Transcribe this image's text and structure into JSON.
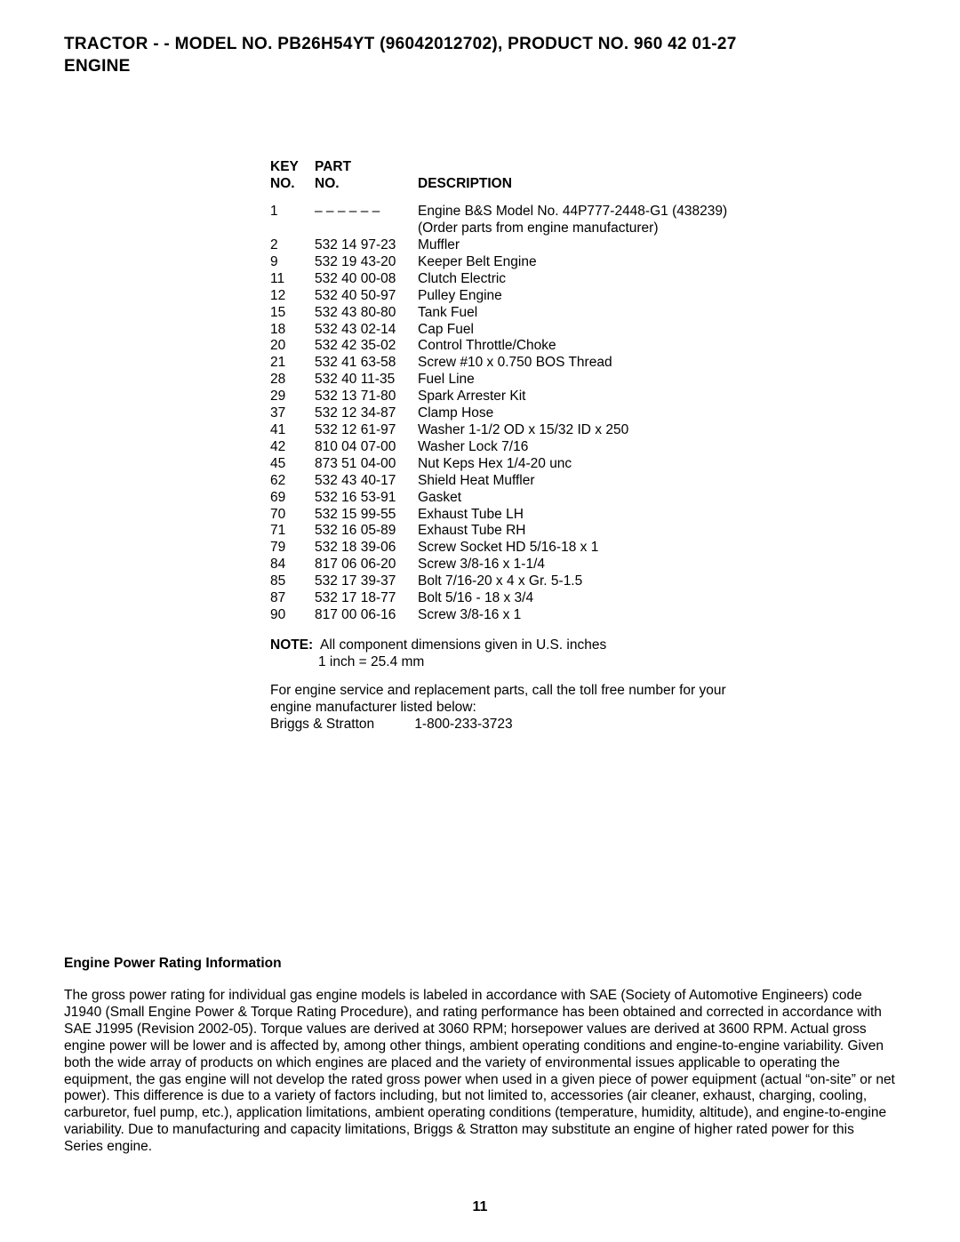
{
  "header_line1": "TRACTOR - - MODEL NO. PB26H54YT (96042012702), PRODUCT NO. 960 42 01-27",
  "header_line2": "ENGINE",
  "table": {
    "head_key1": "KEY",
    "head_key2": "NO.",
    "head_part1": "PART",
    "head_part2": "NO.",
    "head_desc": "DESCRIPTION",
    "rows": [
      {
        "k": "1",
        "p": "– – – – – –",
        "d": "Engine B&S Model No. 44P777-2448-G1 (438239)  (Order parts from engine manufacturer)"
      },
      {
        "k": "2",
        "p": "532 14 97-23",
        "d": "Muffler"
      },
      {
        "k": "9",
        "p": "532 19 43-20",
        "d": "Keeper Belt Engine"
      },
      {
        "k": "11",
        "p": "532 40 00-08",
        "d": "Clutch Electric"
      },
      {
        "k": "12",
        "p": "532 40 50-97",
        "d": "Pulley Engine"
      },
      {
        "k": "15",
        "p": "532 43 80-80",
        "d": "Tank Fuel"
      },
      {
        "k": "18",
        "p": "532 43 02-14",
        "d": "Cap Fuel"
      },
      {
        "k": "20",
        "p": "532 42 35-02",
        "d": "Control Throttle/Choke"
      },
      {
        "k": "21",
        "p": "532 41 63-58",
        "d": "Screw #10 x 0.750 BOS Thread"
      },
      {
        "k": "28",
        "p": "532 40 11-35",
        "d": "Fuel Line"
      },
      {
        "k": "29",
        "p": "532 13 71-80",
        "d": "Spark Arrester Kit"
      },
      {
        "k": "37",
        "p": "532 12 34-87",
        "d": "Clamp Hose"
      },
      {
        "k": "41",
        "p": "532 12 61-97",
        "d": "Washer 1-1/2 OD x 15/32 ID x 250"
      },
      {
        "k": "42",
        "p": "810 04 07-00",
        "d": "Washer Lock 7/16"
      },
      {
        "k": "45",
        "p": "873 51 04-00",
        "d": "Nut Keps Hex 1/4-20 unc"
      },
      {
        "k": "62",
        "p": "532 43 40-17",
        "d": "Shield Heat Muffler"
      },
      {
        "k": "69",
        "p": "532 16 53-91",
        "d": "Gasket"
      },
      {
        "k": "70",
        "p": "532 15 99-55",
        "d": "Exhaust Tube LH"
      },
      {
        "k": "71",
        "p": "532 16 05-89",
        "d": "Exhaust Tube RH"
      },
      {
        "k": "79",
        "p": "532 18 39-06",
        "d": "Screw Socket HD 5/16-18 x 1"
      },
      {
        "k": "84",
        "p": "817 06 06-20",
        "d": "Screw 3/8-16 x 1-1/4"
      },
      {
        "k": "85",
        "p": "532 17 39-37",
        "d": "Bolt 7/16-20 x 4 x Gr. 5-1.5"
      },
      {
        "k": "87",
        "p": "532 17 18-77",
        "d": "Bolt 5/16 - 18 x 3/4"
      },
      {
        "k": "90",
        "p": "817 00 06-16",
        "d": "Screw 3/8-16 x 1"
      }
    ]
  },
  "note_label": "NOTE:",
  "note_text1": "All component dimensions given in U.S. inches",
  "note_text2": "1 inch = 25.4 mm",
  "service_text": "For engine service and replacement parts, call the toll free number for your engine manufacturer listed below:",
  "service_mfr": "Briggs & Stratton",
  "service_phone": "1-800-233-3723",
  "power_heading": "Engine Power Rating Information",
  "power_body": "The gross power rating for individual gas engine models is labeled in accordance with SAE (Society of Automotive Engineers) code J1940 (Small Engine Power & Torque Rating Procedure), and rating performance has been obtained and corrected in accordance with SAE J1995 (Revision 2002-05). Torque values are derived at 3060 RPM; horsepower values are derived at 3600 RPM. Actual gross engine power will be lower and is affected by, among other things, ambient operating conditions and engine-to-engine variability. Given both the wide array of products on which engines are placed and the variety of environmental issues applicable to operating the equipment, the gas engine will not develop the rated gross power when used in a given piece of power equipment (actual “on-site” or net power). This difference is due to a variety of factors including, but not limited to, accessories (air cleaner, exhaust, charging, cooling, carburetor, fuel pump, etc.), application limitations, ambient operating conditions (temperature, humidity, altitude), and engine-to-engine variability. Due to manufacturing and capacity limitations, Briggs & Stratton may substitute an engine of higher rated power for this Series engine.",
  "page_number": "11"
}
